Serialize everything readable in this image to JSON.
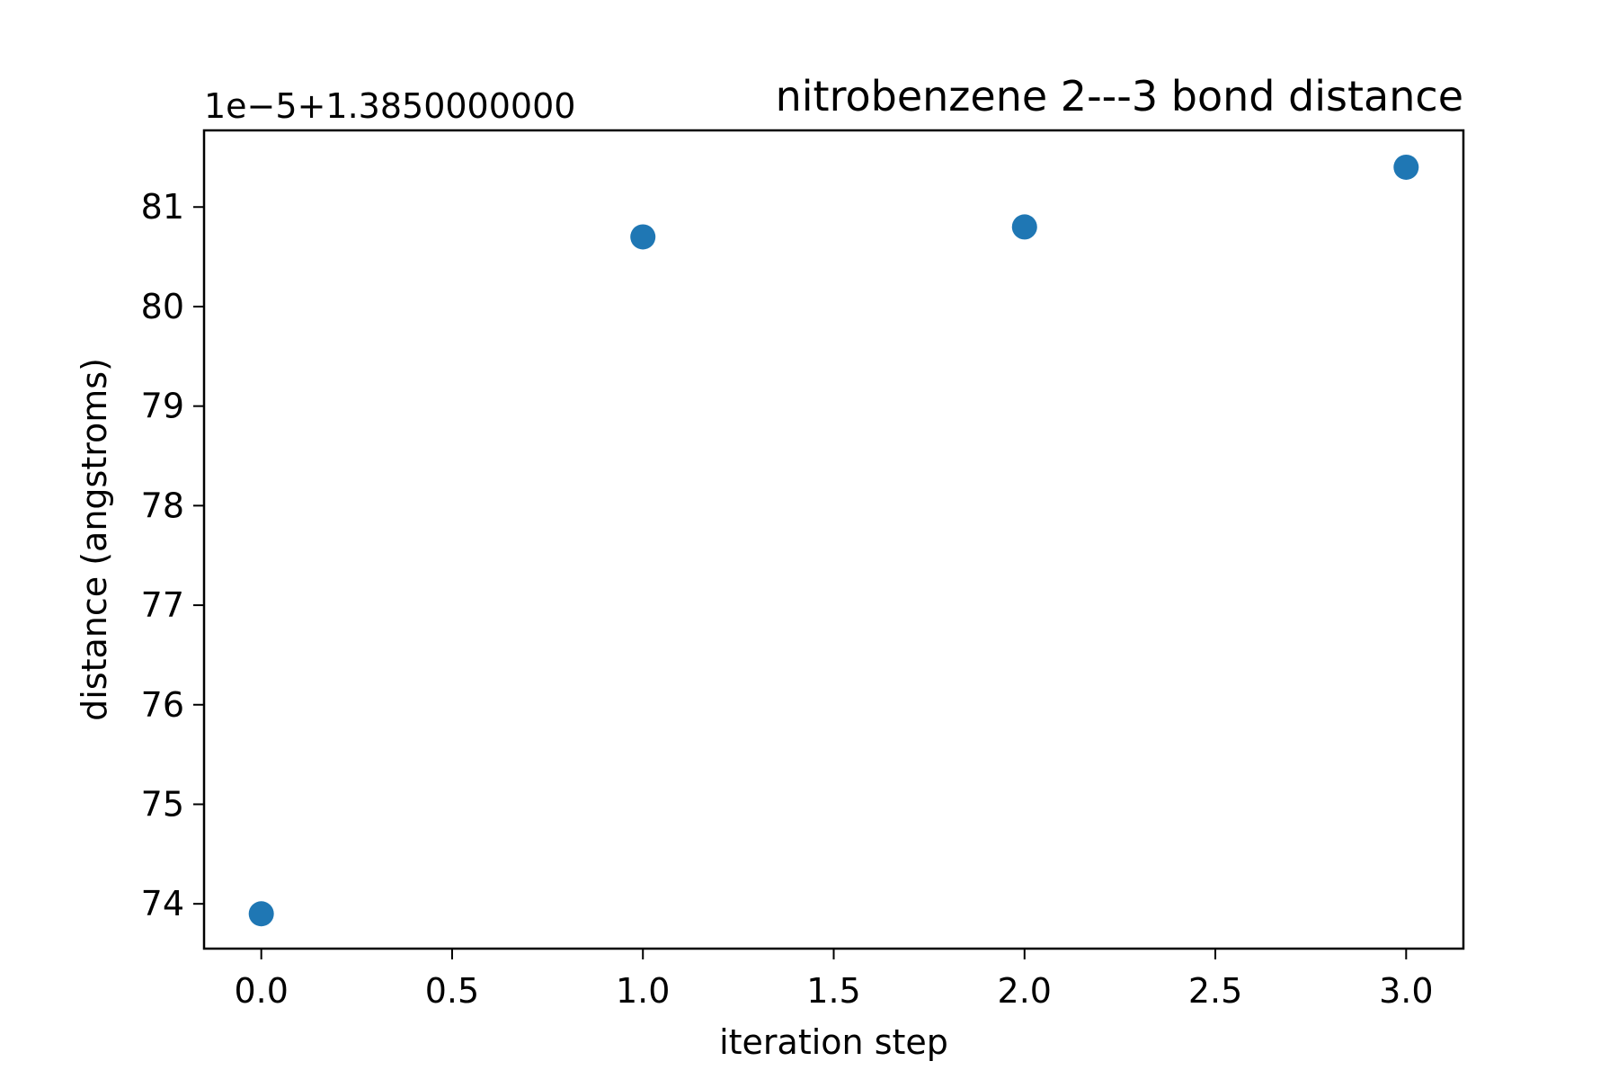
{
  "chart_data": {
    "type": "scatter",
    "title": "nitrobenzene 2---3 bond distance",
    "xlabel": "iteration step",
    "ylabel": "distance (angstroms)",
    "y_offset_label": "1e−5+1.3850000000",
    "xlim": [
      -0.15,
      3.15
    ],
    "ylim": [
      73.55,
      81.77
    ],
    "x_ticks": [
      0.0,
      0.5,
      1.0,
      1.5,
      2.0,
      2.5,
      3.0
    ],
    "x_tick_labels": [
      "0.0",
      "0.5",
      "1.0",
      "1.5",
      "2.0",
      "2.5",
      "3.0"
    ],
    "y_ticks": [
      74,
      75,
      76,
      77,
      78,
      79,
      80,
      81
    ],
    "y_tick_labels": [
      "74",
      "75",
      "76",
      "77",
      "78",
      "79",
      "80",
      "81"
    ],
    "grid": false,
    "series": [
      {
        "color": "#1f77b4",
        "x": [
          0,
          1,
          2,
          3
        ],
        "y": [
          73.9,
          80.7,
          80.8,
          81.4
        ]
      }
    ]
  }
}
